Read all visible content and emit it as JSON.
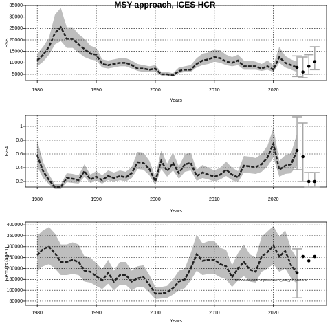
{
  "chart_data": [
    {
      "type": "line",
      "title": "MSY approach, ICES HCR",
      "ylabel": "SSB",
      "xlabel": "Years",
      "xlim": [
        1978,
        2029
      ],
      "xticks": [
        1980,
        1990,
        2000,
        2010,
        2020
      ],
      "ylim": [
        2300,
        35000
      ],
      "yticks": [
        5000,
        10000,
        15000,
        20000,
        25000,
        30000,
        35000
      ],
      "grid": true,
      "line_color": "#222222",
      "band_color": "#bebebe",
      "point_color": "#000000",
      "errorbar_color": "#a6a6a6",
      "x": [
        1980,
        1981,
        1982,
        1983,
        1984,
        1985,
        1986,
        1987,
        1988,
        1989,
        1990,
        1991,
        1992,
        1993,
        1994,
        1995,
        1996,
        1997,
        1998,
        1999,
        2000,
        2001,
        2002,
        2003,
        2004,
        2005,
        2006,
        2007,
        2008,
        2009,
        2010,
        2011,
        2012,
        2013,
        2014,
        2015,
        2016,
        2017,
        2018,
        2019,
        2020,
        2021,
        2022,
        2023,
        2024
      ],
      "values": [
        11000,
        13500,
        17000,
        23000,
        25500,
        20500,
        20500,
        18000,
        16000,
        14000,
        13500,
        9500,
        9000,
        9500,
        10000,
        10000,
        9000,
        7500,
        7500,
        7000,
        7500,
        5000,
        5000,
        4500,
        6500,
        7000,
        7000,
        9500,
        11000,
        11500,
        12500,
        12000,
        10500,
        10000,
        11000,
        8500,
        8500,
        8500,
        7500,
        8500,
        7000,
        12500,
        10000,
        9000,
        8000
      ],
      "lower": [
        8500,
        10500,
        13500,
        18000,
        19500,
        16500,
        16500,
        14500,
        12500,
        11500,
        11000,
        8000,
        7500,
        8000,
        8500,
        8500,
        7500,
        6500,
        6000,
        6000,
        6000,
        4500,
        4500,
        4000,
        5500,
        6000,
        6000,
        8000,
        9000,
        9500,
        10500,
        10000,
        9000,
        8500,
        9000,
        7000,
        7000,
        7000,
        6500,
        7000,
        6000,
        10000,
        8000,
        7000,
        6000
      ],
      "upper": [
        14000,
        17000,
        21000,
        31000,
        34000,
        25500,
        25500,
        22500,
        20500,
        17500,
        16500,
        11500,
        11000,
        11500,
        12000,
        12000,
        11000,
        9500,
        9000,
        8500,
        9000,
        6000,
        6000,
        5500,
        8000,
        8500,
        9000,
        12000,
        14000,
        14500,
        16000,
        15500,
        13500,
        12500,
        13500,
        11000,
        11000,
        10500,
        9500,
        11000,
        9000,
        17000,
        13000,
        11500,
        10500
      ],
      "forecast": {
        "x": [
          2024,
          2025,
          2026,
          2027
        ],
        "values": [
          8000,
          6000,
          8500,
          10500
        ],
        "lower": [
          4000,
          3500,
          5000,
          7000
        ],
        "upper": [
          13000,
          12500,
          13500,
          17000
        ]
      }
    },
    {
      "type": "line",
      "ylabel": "F2-4",
      "xlabel": "Years",
      "xlim": [
        1978,
        2029
      ],
      "xticks": [
        1980,
        1990,
        2000,
        2010,
        2020
      ],
      "ylim": [
        0.12,
        1.16
      ],
      "yticks": [
        0.2,
        0.4,
        0.6,
        0.8,
        1.0
      ],
      "grid": true,
      "line_color": "#222222",
      "band_color": "#bebebe",
      "point_color": "#000000",
      "errorbar_color": "#a6a6a6",
      "x": [
        1980,
        1981,
        1982,
        1983,
        1984,
        1985,
        1986,
        1987,
        1988,
        1989,
        1990,
        1991,
        1992,
        1993,
        1994,
        1995,
        1996,
        1997,
        1998,
        1999,
        2000,
        2001,
        2002,
        2003,
        2004,
        2005,
        2006,
        2007,
        2008,
        2009,
        2010,
        2011,
        2012,
        2013,
        2014,
        2015,
        2016,
        2017,
        2018,
        2019,
        2020,
        2021,
        2022,
        2023,
        2024
      ],
      "values": [
        0.58,
        0.35,
        0.22,
        0.12,
        0.12,
        0.25,
        0.24,
        0.22,
        0.35,
        0.23,
        0.27,
        0.22,
        0.28,
        0.25,
        0.28,
        0.26,
        0.32,
        0.48,
        0.47,
        0.38,
        0.2,
        0.5,
        0.35,
        0.47,
        0.32,
        0.45,
        0.47,
        0.28,
        0.33,
        0.3,
        0.27,
        0.3,
        0.37,
        0.3,
        0.26,
        0.43,
        0.42,
        0.41,
        0.45,
        0.55,
        0.75,
        0.37,
        0.43,
        0.45,
        0.65
      ],
      "lower": [
        0.42,
        0.25,
        0.16,
        0.09,
        0.09,
        0.19,
        0.18,
        0.17,
        0.27,
        0.18,
        0.21,
        0.17,
        0.22,
        0.19,
        0.22,
        0.2,
        0.25,
        0.38,
        0.37,
        0.29,
        0.15,
        0.38,
        0.27,
        0.36,
        0.24,
        0.34,
        0.36,
        0.21,
        0.25,
        0.23,
        0.2,
        0.23,
        0.28,
        0.22,
        0.19,
        0.33,
        0.32,
        0.31,
        0.34,
        0.42,
        0.55,
        0.27,
        0.31,
        0.32,
        0.44
      ],
      "upper": [
        0.8,
        0.48,
        0.3,
        0.16,
        0.16,
        0.32,
        0.31,
        0.29,
        0.45,
        0.3,
        0.35,
        0.29,
        0.36,
        0.33,
        0.36,
        0.34,
        0.41,
        0.63,
        0.62,
        0.5,
        0.27,
        0.65,
        0.46,
        0.62,
        0.42,
        0.59,
        0.62,
        0.37,
        0.44,
        0.4,
        0.36,
        0.4,
        0.49,
        0.4,
        0.35,
        0.57,
        0.56,
        0.54,
        0.6,
        0.72,
        0.98,
        0.5,
        0.58,
        0.61,
        0.9
      ],
      "forecast": {
        "x": [
          2024,
          2025,
          2026,
          2027
        ],
        "values": [
          0.65,
          0.56,
          0.2,
          0.2
        ],
        "lower": [
          0.37,
          0.2,
          0.12,
          0.12
        ],
        "upper": [
          1.14,
          1.05,
          0.33,
          0.33
        ]
      }
    },
    {
      "type": "line",
      "ylabel": "Recruits (age 1)",
      "xlabel": "Years",
      "annotation": "stockassessment.org/NSSP2017_w96_pd13484806",
      "xlim": [
        1978,
        2029
      ],
      "xticks": [
        1980,
        1990,
        2000,
        2010,
        2020
      ],
      "ylim": [
        31000,
        413000
      ],
      "yticks": [
        50000,
        100000,
        150000,
        200000,
        250000,
        300000,
        350000,
        400000
      ],
      "grid": true,
      "line_color": "#222222",
      "band_color": "#bebebe",
      "point_color": "#000000",
      "errorbar_color": "#a6a6a6",
      "x": [
        1980,
        1981,
        1982,
        1983,
        1984,
        1985,
        1986,
        1987,
        1988,
        1989,
        1990,
        1991,
        1992,
        1993,
        1994,
        1995,
        1996,
        1997,
        1998,
        1999,
        2000,
        2001,
        2002,
        2003,
        2004,
        2005,
        2006,
        2007,
        2008,
        2009,
        2010,
        2011,
        2012,
        2013,
        2014,
        2015,
        2016,
        2017,
        2018,
        2019,
        2020,
        2021,
        2022,
        2023,
        2024
      ],
      "values": [
        260000,
        290000,
        300000,
        270000,
        230000,
        230000,
        240000,
        230000,
        190000,
        185000,
        165000,
        145000,
        180000,
        140000,
        170000,
        170000,
        140000,
        155000,
        160000,
        125000,
        85000,
        85000,
        90000,
        110000,
        140000,
        150000,
        200000,
        265000,
        235000,
        240000,
        240000,
        220000,
        210000,
        160000,
        200000,
        230000,
        195000,
        185000,
        255000,
        275000,
        305000,
        255000,
        280000,
        215000,
        180000
      ],
      "lower": [
        190000,
        210000,
        220000,
        200000,
        170000,
        170000,
        175000,
        170000,
        140000,
        135000,
        120000,
        105000,
        130000,
        100000,
        125000,
        125000,
        100000,
        115000,
        115000,
        90000,
        60000,
        62000,
        65000,
        80000,
        100000,
        110000,
        145000,
        190000,
        170000,
        175000,
        175000,
        160000,
        150000,
        115000,
        145000,
        165000,
        140000,
        135000,
        185000,
        200000,
        220000,
        185000,
        200000,
        155000,
        130000
      ],
      "upper": [
        350000,
        375000,
        390000,
        360000,
        310000,
        310000,
        320000,
        310000,
        255000,
        250000,
        225000,
        195000,
        240000,
        190000,
        230000,
        230000,
        190000,
        210000,
        215000,
        170000,
        115000,
        115000,
        120000,
        150000,
        190000,
        200000,
        270000,
        355000,
        315000,
        325000,
        325000,
        295000,
        285000,
        215000,
        270000,
        310000,
        265000,
        250000,
        345000,
        370000,
        395000,
        345000,
        375000,
        290000,
        245000
      ],
      "forecast": {
        "x": [
          2024,
          2025,
          2026,
          2027
        ],
        "values": [
          180000,
          255000,
          235000,
          255000
        ],
        "lower": [
          65000,
          null,
          null,
          null
        ],
        "upper": [
          290000,
          null,
          null,
          null
        ]
      }
    }
  ]
}
